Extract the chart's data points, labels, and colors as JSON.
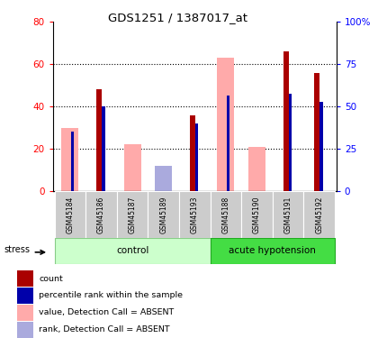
{
  "title": "GDS1251 / 1387017_at",
  "samples": [
    "GSM45184",
    "GSM45186",
    "GSM45187",
    "GSM45189",
    "GSM45193",
    "GSM45188",
    "GSM45190",
    "GSM45191",
    "GSM45192"
  ],
  "group_split": 5,
  "red_bars": [
    0,
    48,
    0,
    0,
    36,
    0,
    0,
    66,
    56
  ],
  "blue_bars": [
    28,
    40,
    0,
    0,
    32,
    45,
    0,
    46,
    42
  ],
  "pink_bars": [
    30,
    0,
    22,
    7,
    0,
    63,
    21,
    0,
    0
  ],
  "lightblue_bars": [
    0,
    0,
    0,
    12,
    0,
    0,
    0,
    0,
    0
  ],
  "ylim_left": [
    0,
    80
  ],
  "ylim_right": [
    0,
    100
  ],
  "yticks_left": [
    0,
    20,
    40,
    60,
    80
  ],
  "yticks_right": [
    0,
    25,
    50,
    75,
    100
  ],
  "color_red": "#AA0000",
  "color_blue": "#0000AA",
  "color_pink": "#FFAAAA",
  "color_lightblue": "#AAAADD",
  "color_ctrl_fill": "#CCFFCC",
  "color_ctrl_edge": "#88CC88",
  "color_hyp_fill": "#44DD44",
  "color_hyp_edge": "#22AA22",
  "color_sample_bg": "#CCCCCC",
  "legend_items": [
    {
      "label": "count",
      "color": "#AA0000"
    },
    {
      "label": "percentile rank within the sample",
      "color": "#0000AA"
    },
    {
      "label": "value, Detection Call = ABSENT",
      "color": "#FFAAAA"
    },
    {
      "label": "rank, Detection Call = ABSENT",
      "color": "#AAAADD"
    }
  ]
}
